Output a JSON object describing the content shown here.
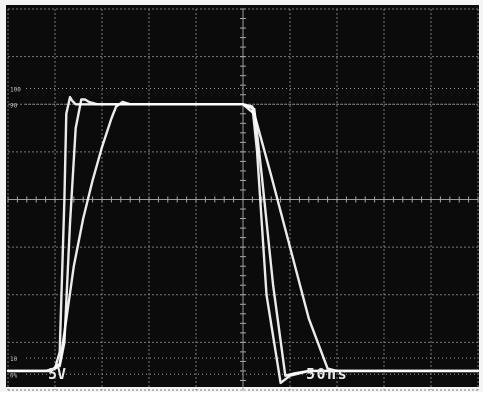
{
  "chart_data": {
    "type": "line",
    "title": "",
    "xlabel": "",
    "ylabel": "",
    "grid": true,
    "xlim": [
      0,
      500
    ],
    "ylim": [
      0,
      8
    ],
    "x_unit": "ns",
    "y_unit": "div",
    "y_markers": [
      {
        "label": "100",
        "y": 6.33
      },
      {
        "label": "90",
        "y": 6.0
      },
      {
        "label": "10",
        "y": 0.67
      },
      {
        "label": "0%",
        "y": 0.33
      }
    ],
    "scale_labels": {
      "vertical": "5V",
      "horizontal": "50ns"
    },
    "series": [
      {
        "x": [
          0,
          40,
          50,
          55,
          60,
          62,
          66,
          68,
          72,
          80,
          100,
          250,
          260,
          265,
          275,
          290,
          300,
          320,
          500
        ],
        "y": [
          0.4,
          0.4,
          0.45,
          0.8,
          4.0,
          5.8,
          6.15,
          6.08,
          6.0,
          6.0,
          6.0,
          6.0,
          5.95,
          5.0,
          2.0,
          0.15,
          0.3,
          0.4,
          0.4
        ]
      },
      {
        "x": [
          0,
          45,
          55,
          60,
          66,
          72,
          78,
          82,
          86,
          95,
          110,
          250,
          262,
          270,
          282,
          295,
          305,
          320,
          500
        ],
        "y": [
          0.4,
          0.4,
          0.5,
          1.0,
          3.5,
          5.5,
          6.1,
          6.1,
          6.05,
          6.0,
          6.0,
          6.0,
          5.9,
          4.5,
          2.2,
          0.3,
          0.35,
          0.4,
          0.4
        ]
      },
      {
        "x": [
          0,
          45,
          55,
          60,
          70,
          80,
          90,
          100,
          110,
          115,
          122,
          130,
          250,
          262,
          280,
          300,
          320,
          340,
          350,
          500
        ],
        "y": [
          0.4,
          0.4,
          0.55,
          1.2,
          2.6,
          3.6,
          4.4,
          5.1,
          5.7,
          5.95,
          6.05,
          6.0,
          6.0,
          5.8,
          4.5,
          3.0,
          1.5,
          0.45,
          0.4,
          0.4
        ]
      }
    ]
  }
}
